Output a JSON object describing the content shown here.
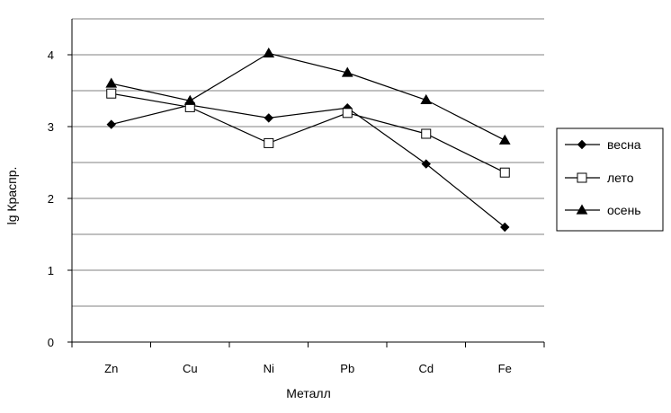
{
  "chart_data": {
    "type": "line",
    "title": "",
    "xlabel": "Металл",
    "ylabel": "lg Краспр.",
    "categories": [
      "Zn",
      "Cu",
      "Ni",
      "Pb",
      "Cd",
      "Fe"
    ],
    "ylim": [
      0,
      4.5
    ],
    "yticks": [
      0,
      1,
      2,
      3,
      4
    ],
    "gridlines": [
      0.5,
      1,
      1.5,
      2,
      2.5,
      3,
      3.5,
      4,
      4.5
    ],
    "grid": true,
    "legend_position": "right",
    "series": [
      {
        "name": "весна",
        "marker": "diamond-filled",
        "values": [
          3.03,
          3.3,
          3.12,
          3.26,
          2.48,
          1.6
        ]
      },
      {
        "name": "лето",
        "marker": "square-open",
        "values": [
          3.46,
          3.27,
          2.77,
          3.19,
          2.9,
          2.36
        ]
      },
      {
        "name": "осень",
        "marker": "triangle-filled",
        "values": [
          3.6,
          3.36,
          4.02,
          3.75,
          3.37,
          2.81
        ]
      }
    ],
    "colors": {
      "line": "#000000",
      "grid": "#808080",
      "axis": "#000000"
    }
  }
}
